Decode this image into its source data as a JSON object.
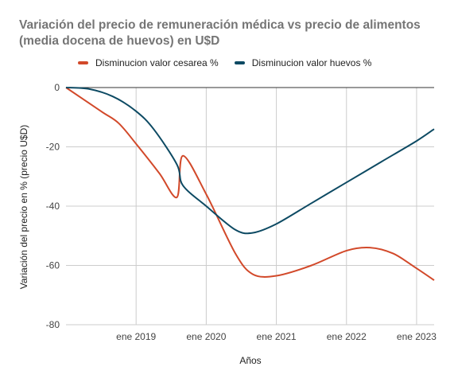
{
  "title": "Variación del precio de remuneración médica vs  precio de alimentos (media docena de huevos) en U$D",
  "colors": {
    "series_cesarea": "#d2492a",
    "series_huevos": "#0d4a63",
    "grid": "#cccccc",
    "zero_line": "#333333"
  },
  "chart_data": {
    "type": "line",
    "title": "Variación del precio de remuneración médica vs  precio de alimentos (media docena de huevos) en U$D",
    "xlabel": "Años",
    "ylabel": "Variación del precio en % (precio U$D)",
    "x_tick_labels": [
      "ene 2019",
      "ene 2020",
      "ene 2021",
      "ene 2022",
      "ene 2023"
    ],
    "y_tick_labels": [
      "0",
      "-20",
      "-40",
      "-60",
      "-80"
    ],
    "ylim": [
      -80,
      0
    ],
    "xlim": [
      "2018-01",
      "2023-04"
    ],
    "grid": true,
    "legend_position": "top",
    "series": [
      {
        "name": "Disminucion valor cesarea %",
        "x": [
          "2018-01",
          "2018-07",
          "2018-10",
          "2019-01",
          "2019-05",
          "2019-08",
          "2019-09",
          "2020-01",
          "2020-06",
          "2020-09",
          "2021-01",
          "2021-07",
          "2022-01",
          "2022-05",
          "2022-09",
          "2023-01",
          "2023-04"
        ],
        "values": [
          0,
          -8,
          -12,
          -19,
          -29,
          -37,
          -23,
          -36,
          -56,
          -63,
          -63.5,
          -60,
          -55,
          -54,
          -56,
          -61,
          -65
        ]
      },
      {
        "name": "Disminucion valor huevos %",
        "x": [
          "2018-01",
          "2018-05",
          "2018-09",
          "2019-01",
          "2019-04",
          "2019-08",
          "2019-09",
          "2020-01",
          "2020-06",
          "2020-09",
          "2021-01",
          "2021-07",
          "2022-01",
          "2022-07",
          "2023-01",
          "2023-04"
        ],
        "values": [
          0,
          -0.5,
          -3,
          -8,
          -14,
          -26,
          -33,
          -40,
          -48,
          -49,
          -46,
          -39,
          -32,
          -25,
          -18,
          -14
        ]
      }
    ]
  }
}
